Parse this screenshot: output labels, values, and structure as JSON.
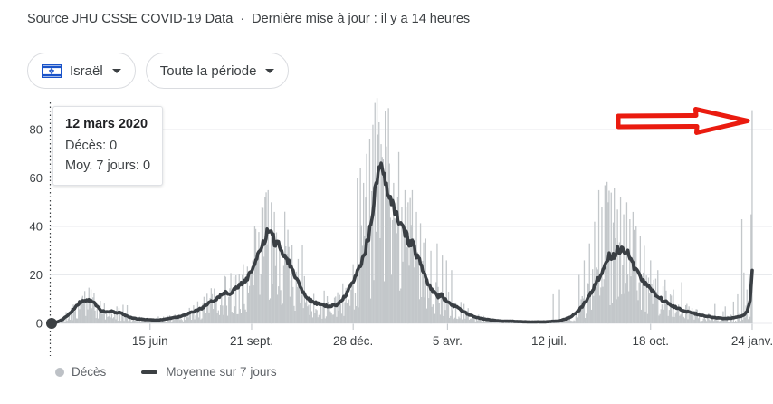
{
  "header": {
    "source_label": "Source",
    "source_link": "JHU CSSE COVID-19 Data",
    "separator": "·",
    "updated_text": "Dernière mise à jour : il y a 14 heures"
  },
  "filters": {
    "country": {
      "label": "Israël",
      "flag_icon": "israel-flag",
      "flag_blue": "#1a53c9"
    },
    "period": {
      "label": "Toute la période"
    }
  },
  "tooltip": {
    "title": "12 mars 2020",
    "deaths_line": "Décès: 0",
    "avg_line": "Moy. 7 jours: 0"
  },
  "legend": {
    "deaths_label": "Décès",
    "average_label": "Moyenne sur 7 jours"
  },
  "annotation": {
    "type": "hand-drawn-arrow",
    "color": "#ea1b0f",
    "points_to": "last-bar-spike"
  },
  "colors": {
    "bar": "#c3c7ca",
    "avg_line": "#3a3f44",
    "grid": "#e8eaed",
    "tick": "#bdc1c6",
    "axis_text": "#3c4043",
    "selection": "#3c4043"
  },
  "chart_data": {
    "type": "bar",
    "title": "",
    "xlabel": "",
    "ylabel": "",
    "ylim": [
      0,
      95
    ],
    "yticks": [
      0,
      20,
      40,
      60,
      80
    ],
    "grid": true,
    "legend_position": "bottom-left",
    "x_domain_days": 690,
    "data_end_day": 676,
    "noise_seed": 11,
    "line_jitter_seed": 99,
    "xticks": [
      {
        "day": 95,
        "label": "15 juin"
      },
      {
        "day": 193,
        "label": "21 sept."
      },
      {
        "day": 291,
        "label": "28 déc."
      },
      {
        "day": 382,
        "label": "5 avr."
      },
      {
        "day": 480,
        "label": "12 juil."
      },
      {
        "day": 578,
        "label": "18 oct."
      },
      {
        "day": 676,
        "label": "24 janv."
      }
    ],
    "selected": {
      "day": 0,
      "label": "12 mars 2020",
      "bar_value": 0,
      "line_value": 0
    },
    "series": [
      {
        "name": "Décès",
        "type": "bar",
        "note": "daily values approximated; derived from avg line with noise plus listed outlier spikes",
        "spikes": [
          [
            203,
            48
          ],
          [
            206,
            52
          ],
          [
            209,
            55
          ],
          [
            212,
            50
          ],
          [
            215,
            46
          ],
          [
            295,
            60
          ],
          [
            298,
            64
          ],
          [
            301,
            58
          ],
          [
            304,
            70
          ],
          [
            307,
            76
          ],
          [
            310,
            82
          ],
          [
            312,
            91
          ],
          [
            314,
            93
          ],
          [
            316,
            83
          ],
          [
            318,
            74
          ],
          [
            320,
            68
          ],
          [
            323,
            73
          ],
          [
            326,
            66
          ],
          [
            330,
            58
          ],
          [
            334,
            52
          ],
          [
            338,
            48
          ],
          [
            341,
            55
          ],
          [
            344,
            50
          ],
          [
            348,
            55
          ],
          [
            352,
            46
          ],
          [
            361,
            35
          ],
          [
            366,
            30
          ],
          [
            372,
            33
          ],
          [
            377,
            28
          ],
          [
            381,
            26
          ],
          [
            386,
            22
          ],
          [
            484,
            12
          ],
          [
            490,
            14
          ],
          [
            509,
            20
          ],
          [
            514,
            26
          ],
          [
            519,
            33
          ],
          [
            524,
            42
          ],
          [
            528,
            55
          ],
          [
            531,
            48
          ],
          [
            534,
            57
          ],
          [
            537,
            50
          ],
          [
            540,
            54
          ],
          [
            543,
            56
          ],
          [
            546,
            47
          ],
          [
            549,
            52
          ],
          [
            552,
            45
          ],
          [
            555,
            50
          ],
          [
            558,
            43
          ],
          [
            561,
            46
          ],
          [
            564,
            40
          ],
          [
            568,
            36
          ],
          [
            572,
            32
          ],
          [
            578,
            26
          ],
          [
            585,
            22
          ],
          [
            592,
            18
          ],
          [
            600,
            14
          ],
          [
            608,
            17
          ],
          [
            640,
            8
          ],
          [
            650,
            7
          ],
          [
            658,
            9
          ],
          [
            662,
            12
          ],
          [
            666,
            43
          ],
          [
            668,
            21
          ],
          [
            671,
            14
          ],
          [
            673,
            20
          ],
          [
            675,
            45
          ],
          [
            676,
            88
          ]
        ]
      },
      {
        "name": "Moyenne sur 7 jours",
        "type": "line",
        "control_points": [
          [
            0,
            0
          ],
          [
            4,
            0.3
          ],
          [
            10,
            1.5
          ],
          [
            16,
            3.5
          ],
          [
            22,
            6
          ],
          [
            27,
            8.5
          ],
          [
            32,
            9.6
          ],
          [
            37,
            9.3
          ],
          [
            41,
            8.5
          ],
          [
            45,
            6.5
          ],
          [
            49,
            5
          ],
          [
            54,
            4.6
          ],
          [
            58,
            5
          ],
          [
            62,
            4.4
          ],
          [
            66,
            4.6
          ],
          [
            70,
            3.6
          ],
          [
            76,
            2.4
          ],
          [
            82,
            1.9
          ],
          [
            90,
            1.6
          ],
          [
            96,
            1.4
          ],
          [
            103,
            1.3
          ],
          [
            110,
            1.8
          ],
          [
            117,
            2.3
          ],
          [
            124,
            2.8
          ],
          [
            131,
            3.8
          ],
          [
            138,
            5
          ],
          [
            145,
            6.3
          ],
          [
            151,
            8
          ],
          [
            157,
            9.6
          ],
          [
            163,
            11.5
          ],
          [
            167,
            12.8
          ],
          [
            171,
            12.4
          ],
          [
            175,
            13.4
          ],
          [
            180,
            15
          ],
          [
            185,
            17
          ],
          [
            189,
            19
          ],
          [
            193,
            22
          ],
          [
            197,
            25.5
          ],
          [
            201,
            29.5
          ],
          [
            205,
            33.5
          ],
          [
            209,
            38
          ],
          [
            212,
            36.5
          ],
          [
            215,
            34
          ],
          [
            219,
            32.5
          ],
          [
            222,
            30
          ],
          [
            226,
            27.5
          ],
          [
            230,
            24.5
          ],
          [
            234,
            20.5
          ],
          [
            238,
            17
          ],
          [
            242,
            13.5
          ],
          [
            246,
            11
          ],
          [
            250,
            9.5
          ],
          [
            254,
            8.6
          ],
          [
            258,
            8
          ],
          [
            263,
            7.4
          ],
          [
            268,
            7
          ],
          [
            273,
            7.4
          ],
          [
            277,
            8.2
          ],
          [
            281,
            10
          ],
          [
            285,
            12.5
          ],
          [
            289,
            15.5
          ],
          [
            293,
            19
          ],
          [
            297,
            23
          ],
          [
            300,
            27
          ],
          [
            303,
            31
          ],
          [
            306,
            36
          ],
          [
            309,
            43
          ],
          [
            311,
            50
          ],
          [
            313,
            57
          ],
          [
            315,
            62
          ],
          [
            317,
            64.5
          ],
          [
            319,
            62
          ],
          [
            321,
            58.5
          ],
          [
            323,
            56
          ],
          [
            325,
            52.5
          ],
          [
            328,
            49.5
          ],
          [
            331,
            46.5
          ],
          [
            334,
            44
          ],
          [
            337,
            42
          ],
          [
            340,
            39.5
          ],
          [
            342,
            36.5
          ],
          [
            344,
            34
          ],
          [
            346,
            33
          ],
          [
            348,
            34.2
          ],
          [
            350,
            31
          ],
          [
            352,
            28.5
          ],
          [
            355,
            25.5
          ],
          [
            358,
            22
          ],
          [
            361,
            18.5
          ],
          [
            364,
            16
          ],
          [
            367,
            13.5
          ],
          [
            370,
            12.2
          ],
          [
            373,
            11
          ],
          [
            376,
            11.6
          ],
          [
            379,
            10.2
          ],
          [
            382,
            9.2
          ],
          [
            385,
            8.2
          ],
          [
            388,
            7.2
          ],
          [
            391,
            6.6
          ],
          [
            394,
            5.8
          ],
          [
            397,
            5
          ],
          [
            400,
            4.2
          ],
          [
            404,
            3.4
          ],
          [
            408,
            2.8
          ],
          [
            413,
            2.2
          ],
          [
            418,
            1.8
          ],
          [
            424,
            1.4
          ],
          [
            430,
            1.1
          ],
          [
            436,
            0.9
          ],
          [
            444,
            0.9
          ],
          [
            452,
            0.7
          ],
          [
            460,
            0.6
          ],
          [
            468,
            0.6
          ],
          [
            476,
            0.6
          ],
          [
            483,
            0.8
          ],
          [
            490,
            1
          ],
          [
            496,
            1.8
          ],
          [
            502,
            3
          ],
          [
            508,
            5
          ],
          [
            513,
            7.5
          ],
          [
            518,
            11
          ],
          [
            523,
            14.5
          ],
          [
            527,
            18
          ],
          [
            531,
            21.5
          ],
          [
            534,
            24
          ],
          [
            536,
            26.5
          ],
          [
            538,
            28
          ],
          [
            540,
            27
          ],
          [
            542,
            29
          ],
          [
            544,
            28
          ],
          [
            546,
            30.5
          ],
          [
            548,
            29.5
          ],
          [
            550,
            31
          ],
          [
            552,
            29.5
          ],
          [
            554,
            28
          ],
          [
            556,
            29
          ],
          [
            558,
            26.5
          ],
          [
            560,
            25
          ],
          [
            563,
            23
          ],
          [
            566,
            21
          ],
          [
            569,
            19
          ],
          [
            572,
            17
          ],
          [
            575,
            15.5
          ],
          [
            578,
            14
          ],
          [
            581,
            12.5
          ],
          [
            584,
            11.5
          ],
          [
            587,
            10.5
          ],
          [
            590,
            9.5
          ],
          [
            594,
            8.6
          ],
          [
            598,
            7.6
          ],
          [
            602,
            6.8
          ],
          [
            606,
            6
          ],
          [
            610,
            5.4
          ],
          [
            614,
            4.8
          ],
          [
            619,
            4.2
          ],
          [
            624,
            3.7
          ],
          [
            629,
            3.2
          ],
          [
            634,
            2.8
          ],
          [
            638,
            2.5
          ],
          [
            643,
            2.2
          ],
          [
            648,
            2
          ],
          [
            653,
            2.1
          ],
          [
            658,
            2.3
          ],
          [
            662,
            2.6
          ],
          [
            666,
            3
          ],
          [
            669,
            3.8
          ],
          [
            671,
            5
          ],
          [
            673,
            7.5
          ],
          [
            674,
            10
          ],
          [
            675,
            15
          ],
          [
            676,
            23
          ]
        ]
      }
    ]
  }
}
